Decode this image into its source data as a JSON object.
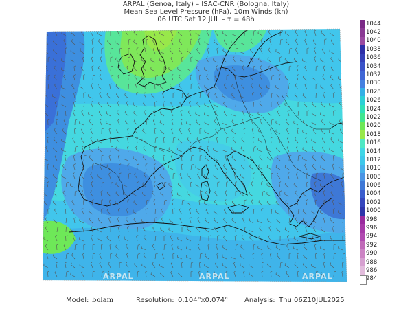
{
  "header": {
    "line1": "ARPAL (Genoa, Italy)  –  ISAC-CNR (Bologna, Italy)",
    "line2": "Mean Sea Level Pressure (hPa), 10m Winds (kn)",
    "line3": "06 UTC Sat 12 JUL  –  τ = 48h"
  },
  "colorbar": {
    "labels": [
      "1044",
      "1042",
      "1040",
      "1038",
      "1036",
      "1034",
      "1032",
      "1030",
      "1028",
      "1026",
      "1024",
      "1022",
      "1020",
      "1018",
      "1016",
      "1014",
      "1012",
      "1010",
      "1008",
      "1006",
      "1004",
      "1002",
      "1000",
      "998",
      "996",
      "994",
      "992",
      "990",
      "988",
      "986",
      "984"
    ],
    "colors": [
      "#7b2a86",
      "#8a3a93",
      "#9a4aa0",
      "#2d2fa8",
      "#3440b8",
      "#3a52c8",
      "#3f66d6",
      "#4580e0",
      "#33b0e6",
      "#2bd0d6",
      "#2fe0b8",
      "#3fe690",
      "#6ee858",
      "#98e84a",
      "#4fe8c4",
      "#40d6e6",
      "#3ec8ea",
      "#47b0ea",
      "#4a94e4",
      "#3e78d6",
      "#3a5ccd",
      "#3546bd",
      "#2d34aa",
      "#9a2a9e",
      "#a63aa8",
      "#b04ab0",
      "#c06ab8",
      "#cc84c4",
      "#d6a0d0",
      "#e2bcdc",
      "#ffffff"
    ]
  },
  "map": {
    "watermark": "ARPAL",
    "colors": {
      "sea_low": "#3ec3ee",
      "sea_mid": "#45d9e2",
      "green_high": "#7fe85a",
      "green_mid": "#58e59a",
      "blue_low": "#3e8fe0",
      "blue_mid": "#4fa9ea",
      "coast": "#111111",
      "wind": "#555555"
    }
  },
  "footer": {
    "model_label": "Model:",
    "model_value": "bolam",
    "resolution_label": "Resolution:",
    "resolution_value": "0.104°x0.074°",
    "analysis_label": "Analysis:",
    "analysis_value": "Thu  06Z10JUL2025"
  }
}
